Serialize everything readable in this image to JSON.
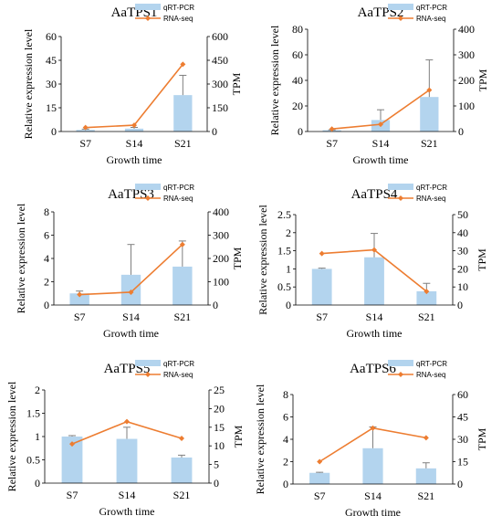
{
  "colors": {
    "bar": "#b3d4ee",
    "line": "#ed7d31",
    "axis": "#000000",
    "error": "#7f7f7f"
  },
  "legend_labels": [
    "qRT-PCR",
    "RNA-seq"
  ],
  "chart_data": [
    {
      "type": "bar",
      "title": "AaTPS1",
      "categories": [
        "S7",
        "S14",
        "S21"
      ],
      "xlabel": "Growth time",
      "ylabel": "Relative expression level",
      "y2label": "TPM",
      "ylim": [
        0,
        60
      ],
      "yticks": [
        0,
        15,
        30,
        45,
        60
      ],
      "y2lim": [
        0,
        600
      ],
      "y2ticks": [
        0,
        150,
        300,
        450,
        600
      ],
      "series": [
        {
          "name": "qRT-PCR",
          "type": "bar",
          "axis": "left",
          "values": [
            1.0,
            1.8,
            23
          ],
          "errors": [
            0.5,
            0.8,
            12.5
          ]
        },
        {
          "name": "RNA-seq",
          "type": "line",
          "axis": "right",
          "values": [
            25,
            40,
            425
          ]
        }
      ],
      "legend": "top-right"
    },
    {
      "type": "bar",
      "title": "AaTPS2",
      "categories": [
        "S7",
        "S14",
        "S21"
      ],
      "xlabel": "Growth time",
      "ylabel": "Relative expression level",
      "y2label": "TPM",
      "ylim": [
        0,
        80
      ],
      "yticks": [
        0,
        20,
        40,
        60,
        80
      ],
      "y2lim": [
        0,
        400
      ],
      "y2ticks": [
        0,
        100,
        200,
        300,
        400
      ],
      "series": [
        {
          "name": "qRT-PCR",
          "type": "bar",
          "axis": "left",
          "values": [
            1.0,
            9,
            27
          ],
          "errors": [
            0.3,
            8,
            29
          ]
        },
        {
          "name": "RNA-seq",
          "type": "line",
          "axis": "right",
          "values": [
            10,
            28,
            162
          ]
        }
      ],
      "legend": "top-right"
    },
    {
      "type": "bar",
      "title": "AaTPS3",
      "categories": [
        "S7",
        "S14",
        "S21"
      ],
      "xlabel": "Growth time",
      "ylabel": "Relative expression level",
      "y2label": "TPM",
      "ylim": [
        0,
        8
      ],
      "yticks": [
        0,
        2,
        4,
        6,
        8
      ],
      "y2lim": [
        0,
        400
      ],
      "y2ticks": [
        0,
        100,
        200,
        300,
        400
      ],
      "series": [
        {
          "name": "qRT-PCR",
          "type": "bar",
          "axis": "left",
          "values": [
            1.0,
            2.6,
            3.3
          ],
          "errors": [
            0.2,
            2.6,
            2.2
          ]
        },
        {
          "name": "RNA-seq",
          "type": "line",
          "axis": "right",
          "values": [
            45,
            55,
            260
          ]
        }
      ],
      "legend": "top-right"
    },
    {
      "type": "bar",
      "title": "AaTPS4",
      "categories": [
        "S7",
        "S14",
        "S21"
      ],
      "xlabel": "Growth time",
      "ylabel": "Relative expression level",
      "y2label": "TPM",
      "ylim": [
        0,
        2.5
      ],
      "yticks": [
        0,
        0.5,
        1,
        1.5,
        2,
        2.5
      ],
      "y2lim": [
        0,
        50
      ],
      "y2ticks": [
        0,
        10,
        20,
        30,
        40,
        50
      ],
      "series": [
        {
          "name": "qRT-PCR",
          "type": "bar",
          "axis": "left",
          "values": [
            1.0,
            1.32,
            0.38
          ],
          "errors": [
            0.02,
            0.66,
            0.22
          ]
        },
        {
          "name": "RNA-seq",
          "type": "line",
          "axis": "right",
          "values": [
            28.5,
            30.5,
            7.5
          ]
        }
      ],
      "legend": "top-right"
    },
    {
      "type": "bar",
      "title": "AaTPS5",
      "categories": [
        "S7",
        "S14",
        "S21"
      ],
      "xlabel": "Growth time",
      "ylabel": "Relative expression level",
      "y2label": "TPM",
      "ylim": [
        0,
        2
      ],
      "yticks": [
        0,
        0.5,
        1,
        1.5,
        2
      ],
      "y2lim": [
        0,
        25
      ],
      "y2ticks": [
        0,
        5,
        10,
        15,
        20,
        25
      ],
      "series": [
        {
          "name": "qRT-PCR",
          "type": "bar",
          "axis": "left",
          "values": [
            1.0,
            0.95,
            0.55
          ],
          "errors": [
            0.02,
            0.25,
            0.05
          ]
        },
        {
          "name": "RNA-seq",
          "type": "line",
          "axis": "right",
          "values": [
            10.5,
            16.5,
            12
          ]
        }
      ],
      "legend": "top-right"
    },
    {
      "type": "bar",
      "title": "AaTPS6",
      "categories": [
        "S7",
        "S14",
        "S21"
      ],
      "xlabel": "Growth time",
      "ylabel": "Relative expression level",
      "y2label": "TPM",
      "ylim": [
        0,
        8
      ],
      "yticks": [
        0,
        2,
        4,
        6,
        8
      ],
      "y2lim": [
        0,
        60
      ],
      "y2ticks": [
        0,
        15,
        30,
        45,
        60
      ],
      "series": [
        {
          "name": "qRT-PCR",
          "type": "bar",
          "axis": "left",
          "values": [
            1.0,
            3.2,
            1.4
          ],
          "errors": [
            0.05,
            1.9,
            0.5
          ]
        },
        {
          "name": "RNA-seq",
          "type": "line",
          "axis": "right",
          "values": [
            15,
            37.5,
            31
          ]
        }
      ],
      "legend": "top-right"
    }
  ]
}
